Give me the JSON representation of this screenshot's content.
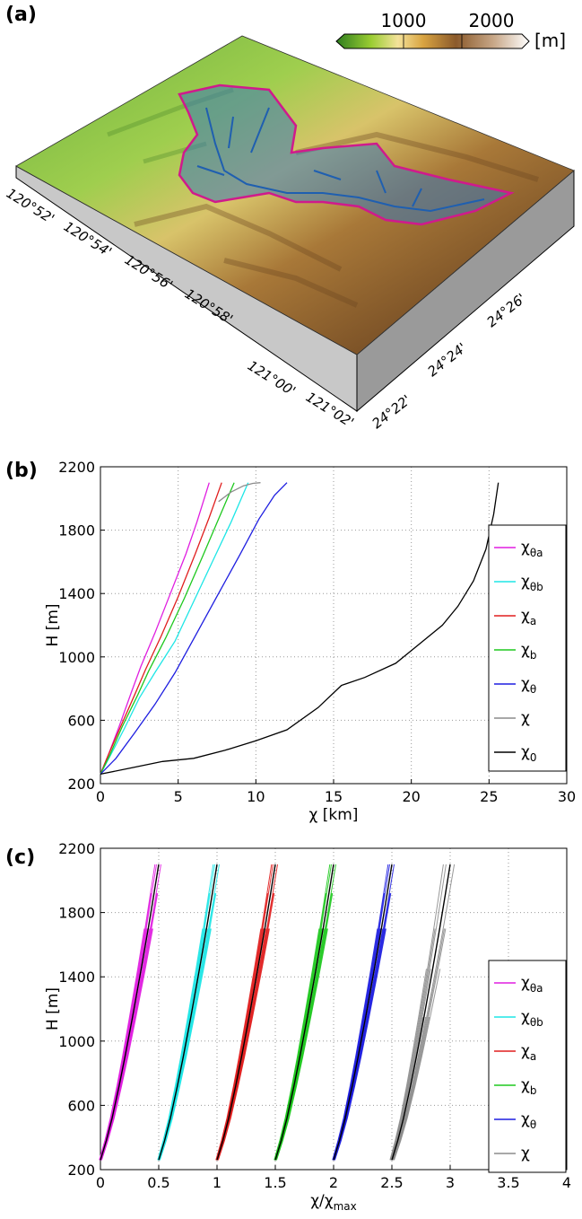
{
  "panels": {
    "a": {
      "label": "(a)",
      "colorbar": {
        "ticks": [
          "1000",
          "2000"
        ],
        "unit": "[m]"
      },
      "lon_labels": [
        "120°52'",
        "120°54'",
        "120°56'",
        "120°58'",
        "121°00'",
        "121°02'"
      ],
      "lat_labels": [
        "24°22'",
        "24°24'",
        "24°26'"
      ]
    },
    "b": {
      "label": "(b)"
    },
    "c": {
      "label": "(c)"
    }
  },
  "colors": {
    "chi_theta_a": "#e01ee0",
    "chi_theta_b": "#1ee6e6",
    "chi_a": "#e01e1e",
    "chi_b": "#1ec81e",
    "chi_theta": "#1e1ee0",
    "chi": "#8c8c8c",
    "chi_0": "#000000",
    "basin_outline": "#d01a8c",
    "river": "#1f5fb0"
  },
  "chart_data": [
    {
      "type": "line",
      "panel": "b",
      "xlabel": "χ [km]",
      "ylabel": "H [m]",
      "xlim": [
        0,
        30
      ],
      "ylim": [
        200,
        2200
      ],
      "xticks": [
        "0",
        "5",
        "10",
        "15",
        "20",
        "25",
        "30"
      ],
      "yticks": [
        "200",
        "600",
        "1000",
        "1400",
        "1800",
        "2200"
      ],
      "grid": true,
      "legend_position": "right",
      "series": [
        {
          "name": "χθa",
          "sym": "χ",
          "sub": "θa",
          "color": "#e01ee0",
          "x": [
            0,
            0.5,
            1.2,
            2.0,
            2.6,
            3.5,
            4.5,
            5.5,
            6.2,
            7.0
          ],
          "y": [
            260,
            380,
            560,
            780,
            940,
            1150,
            1400,
            1650,
            1850,
            2100
          ]
        },
        {
          "name": "χθb",
          "sym": "χ",
          "sub": "θb",
          "color": "#1ee6e6",
          "x": [
            0,
            0.6,
            1.5,
            2.5,
            3.5,
            4.8,
            6.0,
            7.2,
            8.4,
            9.5
          ],
          "y": [
            260,
            370,
            540,
            740,
            900,
            1100,
            1350,
            1600,
            1850,
            2100
          ]
        },
        {
          "name": "χa",
          "sym": "χ",
          "sub": "a",
          "color": "#e01e1e",
          "x": [
            0,
            0.5,
            1.3,
            2.2,
            2.9,
            3.9,
            5.0,
            6.1,
            7.0,
            7.8
          ],
          "y": [
            260,
            380,
            560,
            760,
            920,
            1130,
            1380,
            1650,
            1880,
            2100
          ]
        },
        {
          "name": "χb",
          "sym": "χ",
          "sub": "b",
          "color": "#1ec81e",
          "x": [
            0,
            0.6,
            1.4,
            2.4,
            3.1,
            4.2,
            5.4,
            6.6,
            7.6,
            8.6
          ],
          "y": [
            260,
            380,
            560,
            760,
            910,
            1120,
            1370,
            1640,
            1870,
            2100
          ]
        },
        {
          "name": "χθ",
          "sym": "χ",
          "sub": "θ",
          "color": "#1e1ee0",
          "x": [
            0,
            1.0,
            2.2,
            3.5,
            4.8,
            6.2,
            7.6,
            9.0,
            10.2,
            11.2,
            12.0
          ],
          "y": [
            260,
            360,
            520,
            700,
            900,
            1150,
            1400,
            1650,
            1870,
            2020,
            2100
          ]
        },
        {
          "name": "χ",
          "sym": "χ",
          "sub": "",
          "color": "#8c8c8c",
          "x": [
            7.6,
            8.4,
            9.2,
            9.8,
            10.3
          ],
          "y": [
            1980,
            2040,
            2080,
            2095,
            2100
          ]
        },
        {
          "name": "χ0",
          "sym": "χ",
          "sub": "0",
          "color": "#000000",
          "x": [
            0,
            2,
            4,
            6,
            8,
            10,
            12,
            14,
            15.5,
            17,
            19,
            20.5,
            22,
            23,
            24,
            24.8,
            25.3,
            25.6
          ],
          "y": [
            260,
            300,
            340,
            360,
            410,
            470,
            540,
            680,
            820,
            870,
            960,
            1080,
            1200,
            1320,
            1480,
            1680,
            1900,
            2100
          ]
        }
      ]
    },
    {
      "type": "line",
      "panel": "c",
      "xlabel": "χ/χmax",
      "xlabel_sym": "χ/χ",
      "xlabel_sub": "max",
      "ylabel": "H [m]",
      "xlim": [
        0,
        4
      ],
      "ylim": [
        200,
        2200
      ],
      "xticks": [
        "0",
        "0.5",
        "1",
        "1.5",
        "2",
        "2.5",
        "3",
        "3.5",
        "4"
      ],
      "yticks": [
        "200",
        "600",
        "1000",
        "1400",
        "1800",
        "2200"
      ],
      "grid": true,
      "legend_position": "right",
      "series": [
        {
          "name": "χθa",
          "sym": "χ",
          "sub": "θa",
          "color": "#e01ee0",
          "offset": 0.0
        },
        {
          "name": "χθb",
          "sym": "χ",
          "sub": "θb",
          "color": "#1ee6e6",
          "offset": 0.5
        },
        {
          "name": "χa",
          "sym": "χ",
          "sub": "a",
          "color": "#e01e1e",
          "offset": 1.0
        },
        {
          "name": "χb",
          "sym": "χ",
          "sub": "b",
          "color": "#1ec81e",
          "offset": 1.5
        },
        {
          "name": "χθ",
          "sym": "χ",
          "sub": "θ",
          "color": "#1e1ee0",
          "offset": 2.0
        },
        {
          "name": "χ",
          "sym": "χ",
          "sub": "",
          "color": "#8c8c8c",
          "offset": 2.5
        }
      ]
    }
  ]
}
